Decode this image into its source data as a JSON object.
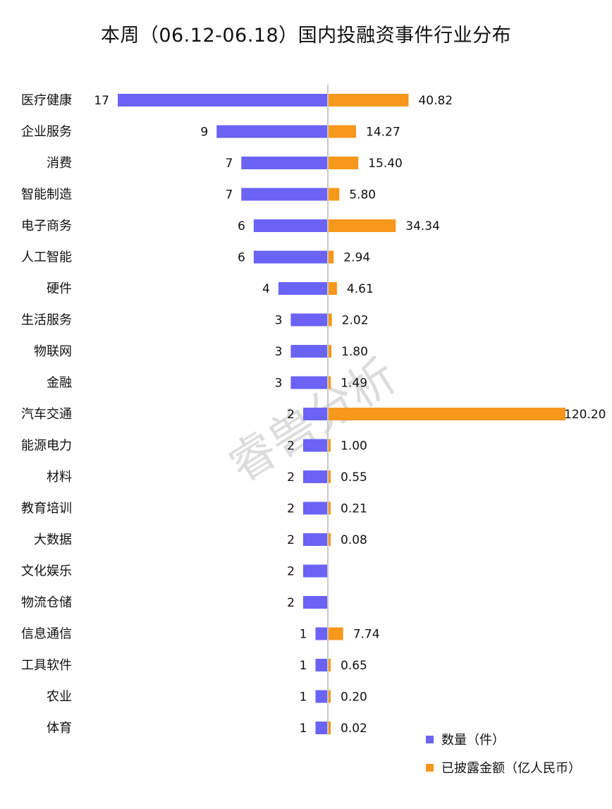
{
  "title": "本周（06.12-06.18）国内投融资事件行业分布",
  "watermark": "睿兽分析",
  "legend": {
    "placement": "bottom-right",
    "items": [
      {
        "label": "数量（件）",
        "color": "#6b63f5"
      },
      {
        "label": "已披露金额（亿人民币）",
        "color": "#f7971c"
      }
    ]
  },
  "chart_data": {
    "type": "bar",
    "orientation": "horizontal-diverging",
    "title": "本周（06.12-06.18）国内投融资事件行业分布",
    "categories": [
      "医疗健康",
      "企业服务",
      "消费",
      "智能制造",
      "电子商务",
      "人工智能",
      "硬件",
      "生活服务",
      "物联网",
      "金融",
      "汽车交通",
      "能源电力",
      "材料",
      "教育培训",
      "大数据",
      "文化娱乐",
      "物流仓储",
      "信息通信",
      "工具软件",
      "农业",
      "体育"
    ],
    "series": [
      {
        "name": "数量（件）",
        "color": "#6b63f5",
        "direction": "left",
        "values": [
          17,
          9,
          7,
          7,
          6,
          6,
          4,
          3,
          3,
          3,
          2,
          2,
          2,
          2,
          2,
          2,
          2,
          1,
          1,
          1,
          1
        ],
        "labels": [
          "17",
          "9",
          "7",
          "7",
          "6",
          "6",
          "4",
          "3",
          "3",
          "3",
          "2",
          "2",
          "2",
          "2",
          "2",
          "2",
          "2",
          "1",
          "1",
          "1",
          "1"
        ]
      },
      {
        "name": "已披露金额（亿人民币）",
        "color": "#f7971c",
        "direction": "right",
        "values": [
          40.82,
          14.27,
          15.4,
          5.8,
          34.34,
          2.94,
          4.61,
          2.02,
          1.8,
          1.49,
          120.2,
          1.0,
          0.55,
          0.21,
          0.08,
          null,
          null,
          7.74,
          0.65,
          0.2,
          0.02
        ],
        "labels": [
          "40.82",
          "14.27",
          "15.40",
          "5.80",
          "34.34",
          "2.94",
          "4.61",
          "2.02",
          "1.80",
          "1.49",
          "120.20",
          "1.00",
          "0.55",
          "0.21",
          "0.08",
          "",
          "",
          "7.74",
          "0.65",
          "0.20",
          "0.02"
        ]
      }
    ],
    "grid": false,
    "axes_visible": false
  }
}
